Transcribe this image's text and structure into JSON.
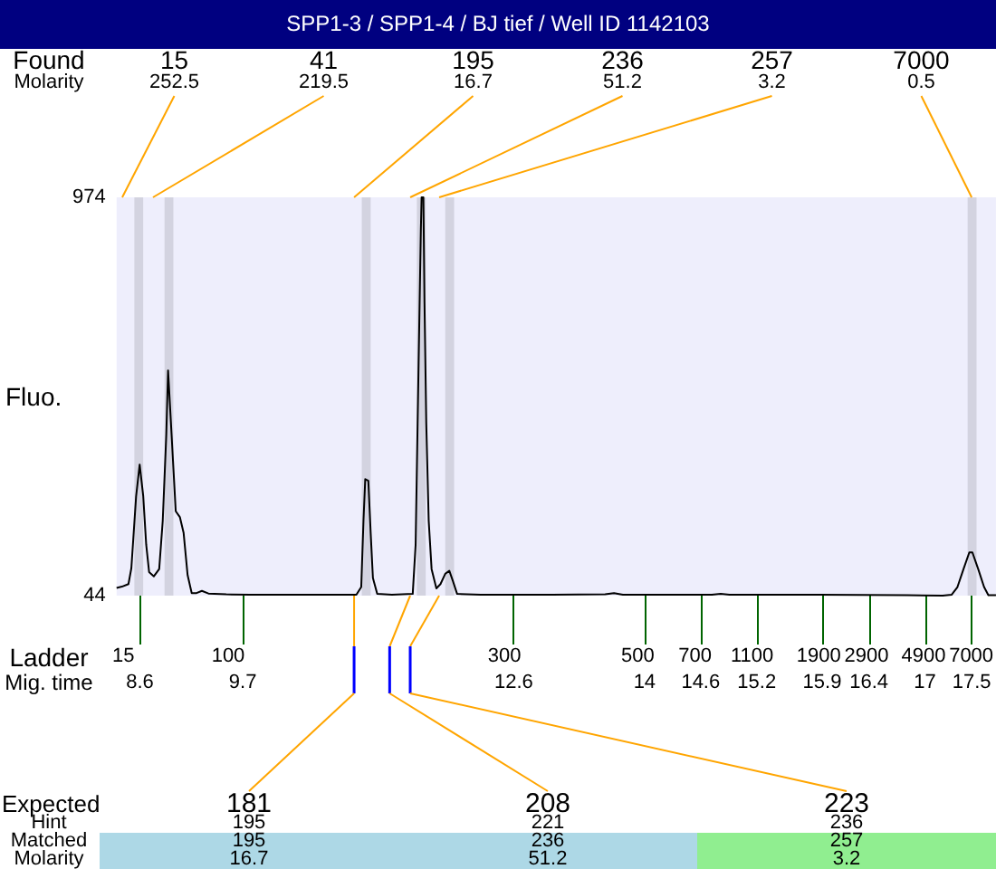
{
  "chart_data": {
    "type": "line",
    "title": "SPP1-3 / SPP1-4 / BJ tief / Well ID 1142103",
    "xlabel": "Ladder\nMig. time",
    "ylabel": "Fluo.",
    "x": [
      8.35,
      8.407,
      8.477,
      8.508,
      8.559,
      8.597,
      8.635,
      8.667,
      8.698,
      8.749,
      8.806,
      8.844,
      8.882,
      8.901,
      8.939,
      8.983,
      9.028,
      9.067,
      9.11,
      9.154,
      9.206,
      9.263,
      9.333,
      9.523,
      9.776,
      10.346,
      10.916,
      10.968,
      10.992,
      11.011,
      11.044,
      11.069,
      11.093,
      11.139,
      11.297,
      11.519,
      11.55,
      11.582,
      11.606,
      11.614,
      11.633,
      11.645,
      11.664,
      11.69,
      11.721,
      11.772,
      11.816,
      11.867,
      11.911,
      11.949,
      11.994,
      12.247,
      13.008,
      13.578,
      13.673,
      13.768,
      14.719,
      14.814,
      14.909,
      15.859,
      16.81,
      17.19,
      17.285,
      17.348,
      17.413,
      17.475,
      17.508,
      17.57,
      17.633,
      17.679,
      17.76
    ],
    "values": [
      62,
      65,
      71,
      108,
      276,
      350,
      277,
      163,
      99,
      89,
      106,
      219,
      420,
      570,
      418,
      241,
      227,
      191,
      92,
      50,
      50,
      55,
      49,
      47,
      46,
      46,
      46,
      64,
      219,
      316,
      312,
      191,
      85,
      48,
      46,
      48,
      163,
      587,
      898,
      974,
      974,
      729,
      446,
      219,
      106,
      61,
      71,
      95,
      102,
      78,
      48,
      46,
      46,
      47,
      50,
      46,
      46,
      48,
      46,
      46,
      45,
      44,
      46,
      64,
      106,
      145,
      145,
      106,
      64,
      45,
      45
    ],
    "color": "#000000",
    "xlim": [
      8.35,
      17.76
    ],
    "ylim": [
      44,
      974
    ],
    "yticks": [
      44,
      974
    ],
    "xticks": [
      8.6,
      9.7,
      12.6,
      14,
      14.6,
      15.2,
      15.9,
      16.4,
      17,
      17.5
    ],
    "bands": [
      {
        "axis": "x",
        "from": 8.54,
        "to": 8.635,
        "label": "15\n252.5",
        "color": "#d3d3e0"
      },
      {
        "axis": "x",
        "from": 8.863,
        "to": 8.958,
        "label": "41\n219.5",
        "color": "#d3d3e0"
      },
      {
        "axis": "x",
        "from": 10.974,
        "to": 11.069,
        "label": "195\n16.7",
        "color": "#d3d3e0"
      },
      {
        "axis": "x",
        "from": 11.563,
        "to": 11.658,
        "label": "236\n51.2",
        "color": "#d3d3e0"
      },
      {
        "axis": "x",
        "from": 11.867,
        "to": 11.962,
        "label": "257\n3.2",
        "color": "#d3d3e0"
      },
      {
        "axis": "x",
        "from": 17.457,
        "to": 17.552,
        "label": "7000\n0.5",
        "color": "#d3d3e0"
      }
    ],
    "annotations": [
      "Found",
      "Molarity",
      "15",
      "100",
      "300",
      "500",
      "700",
      "1100",
      "1900",
      "2900",
      "4900",
      "7000",
      "Expected",
      "Hint",
      "Matched",
      "Molarity",
      "181",
      "208",
      "223",
      "195",
      "221",
      "236",
      "195",
      "236",
      "257",
      "16.7",
      "51.2",
      "3.2"
    ]
  }
}
